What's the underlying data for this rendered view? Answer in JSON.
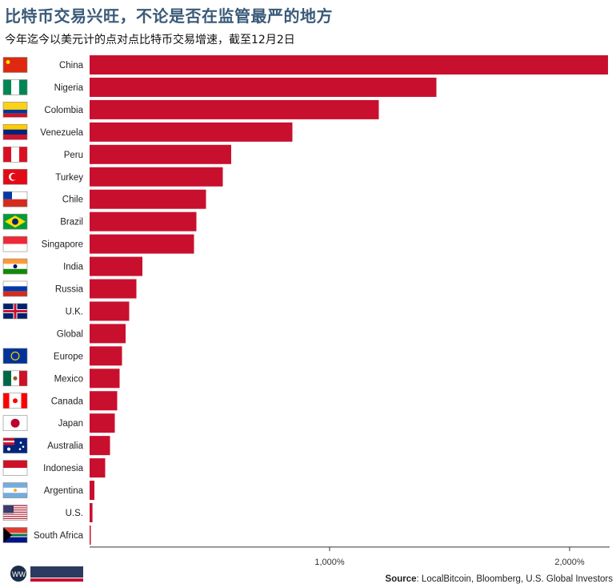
{
  "title": "比特币交易兴旺，不论是否在监管最严的地方",
  "subtitle": "今年迄今以美元计的点对点比特币交易增速，截至12月2日",
  "source": {
    "label": "Source",
    "text": ": LocalBitcoin, Bloomberg, U.S. Global Investors"
  },
  "colors": {
    "bar": "#c8102e",
    "axis": "#333333",
    "title": "#3a5a78"
  },
  "chart_data": {
    "type": "bar",
    "orientation": "horizontal",
    "title": "比特币交易兴旺，不论是否在监管最严的地方",
    "subtitle": "今年迄今以美元计的点对点比特币交易增速，截至12月2日",
    "categories": [
      "China",
      "Nigeria",
      "Colombia",
      "Venezuela",
      "Peru",
      "Turkey",
      "Chile",
      "Brazil",
      "Singapore",
      "India",
      "Russia",
      "U.K.",
      "Global",
      "Europe",
      "Mexico",
      "Canada",
      "Japan",
      "Australia",
      "Indonesia",
      "Argentina",
      "U.S.",
      "South Africa"
    ],
    "values": [
      2160,
      1445,
      1205,
      845,
      590,
      555,
      485,
      445,
      435,
      220,
      195,
      165,
      150,
      135,
      125,
      115,
      105,
      85,
      65,
      20,
      12,
      5
    ],
    "unit": "%",
    "xlim": [
      -10,
      2160
    ],
    "xticks": [
      1000,
      2000
    ],
    "xtick_labels": [
      "1,000%",
      "2,000%"
    ],
    "flags": [
      "cn",
      "ng",
      "co",
      "ve",
      "pe",
      "tr",
      "cl",
      "br",
      "sg",
      "in",
      "ru",
      "uk",
      "",
      "eu",
      "mx",
      "ca",
      "jp",
      "au",
      "id",
      "ar",
      "us",
      "za"
    ],
    "grid": false,
    "legend": "none"
  }
}
